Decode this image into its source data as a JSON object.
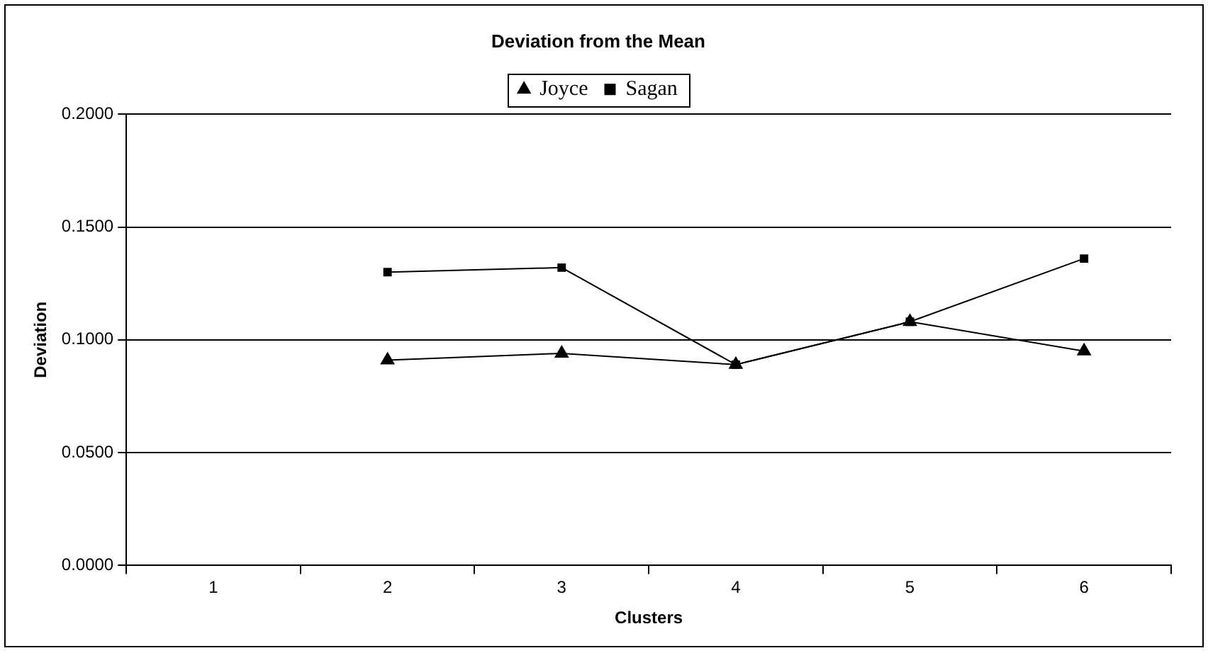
{
  "chart_data": {
    "type": "line",
    "title": "Deviation from the Mean",
    "xlabel": "Clusters",
    "ylabel": "Deviation",
    "categories": [
      "1",
      "2",
      "3",
      "4",
      "5",
      "6"
    ],
    "series": [
      {
        "name": "Joyce",
        "color": "#000000",
        "marker": "triangle",
        "values": [
          null,
          0.091,
          0.094,
          0.089,
          0.108,
          0.095
        ]
      },
      {
        "name": "Sagan",
        "color": "#000000",
        "marker": "square",
        "values": [
          null,
          0.13,
          0.132,
          0.089,
          0.108,
          0.136
        ]
      }
    ],
    "ylim": [
      0,
      0.2
    ],
    "yticks": [
      {
        "value": 0,
        "label": "0.0000"
      },
      {
        "value": 0.05,
        "label": "0.0500"
      },
      {
        "value": 0.1,
        "label": "0.1000"
      },
      {
        "value": 0.15,
        "label": "0.1500"
      },
      {
        "value": 0.2,
        "label": "0.2000"
      }
    ],
    "grid": "y",
    "legend": "top",
    "line_style": "solid"
  }
}
